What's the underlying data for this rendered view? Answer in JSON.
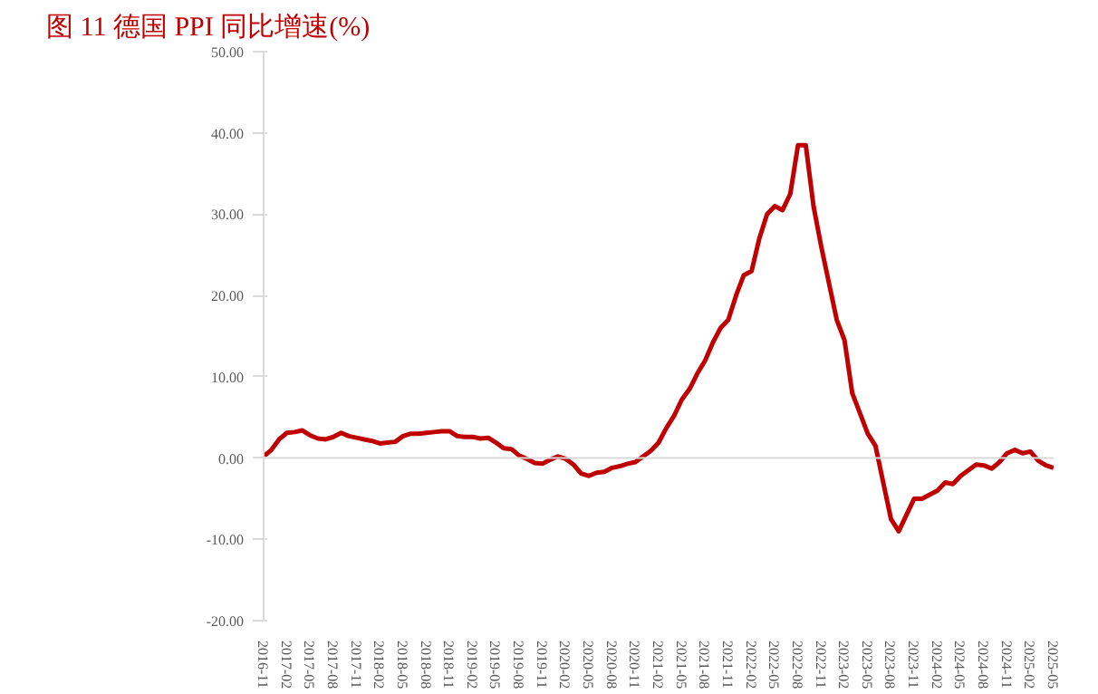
{
  "chart_data": {
    "type": "line",
    "title": "图 11  德国 PPI 同比增速(%)",
    "x": [
      "2016-11",
      "2016-12",
      "2017-01",
      "2017-02",
      "2017-03",
      "2017-04",
      "2017-05",
      "2017-06",
      "2017-07",
      "2017-08",
      "2017-09",
      "2017-10",
      "2017-11",
      "2017-12",
      "2018-01",
      "2018-02",
      "2018-03",
      "2018-04",
      "2018-05",
      "2018-06",
      "2018-07",
      "2018-08",
      "2018-09",
      "2018-10",
      "2018-11",
      "2018-12",
      "2019-01",
      "2019-02",
      "2019-03",
      "2019-04",
      "2019-05",
      "2019-06",
      "2019-07",
      "2019-08",
      "2019-09",
      "2019-10",
      "2019-11",
      "2019-12",
      "2020-01",
      "2020-02",
      "2020-03",
      "2020-04",
      "2020-05",
      "2020-06",
      "2020-07",
      "2020-08",
      "2020-09",
      "2020-10",
      "2020-11",
      "2020-12",
      "2021-01",
      "2021-02",
      "2021-03",
      "2021-04",
      "2021-05",
      "2021-06",
      "2021-07",
      "2021-08",
      "2021-09",
      "2021-10",
      "2021-11",
      "2021-12",
      "2022-01",
      "2022-02",
      "2022-03",
      "2022-04",
      "2022-05",
      "2022-06",
      "2022-07",
      "2022-08",
      "2022-09",
      "2022-10",
      "2022-11",
      "2022-12",
      "2023-01",
      "2023-02",
      "2023-03",
      "2023-04",
      "2023-05",
      "2023-06",
      "2023-07",
      "2023-08",
      "2023-09",
      "2023-10",
      "2023-11",
      "2023-12",
      "2024-01",
      "2024-02",
      "2024-03",
      "2024-04",
      "2024-05",
      "2024-06",
      "2024-07",
      "2024-08",
      "2024-09",
      "2024-10",
      "2024-11",
      "2024-12",
      "2025-01",
      "2025-02",
      "2025-03",
      "2025-04",
      "2025-05"
    ],
    "series": [
      {
        "color": "#c00000",
        "values": [
          0.2,
          1.0,
          2.3,
          3.1,
          3.2,
          3.4,
          2.8,
          2.4,
          2.3,
          2.6,
          3.1,
          2.7,
          2.5,
          2.3,
          2.1,
          1.8,
          1.9,
          2.0,
          2.7,
          3.0,
          3.0,
          3.1,
          3.2,
          3.3,
          3.3,
          2.7,
          2.6,
          2.6,
          2.4,
          2.5,
          1.9,
          1.2,
          1.1,
          0.3,
          -0.1,
          -0.6,
          -0.7,
          -0.2,
          0.2,
          -0.1,
          -0.8,
          -1.9,
          -2.2,
          -1.8,
          -1.7,
          -1.2,
          -1.0,
          -0.7,
          -0.5,
          0.2,
          0.9,
          1.9,
          3.7,
          5.2,
          7.2,
          8.5,
          10.4,
          12.0,
          14.2,
          16.0,
          17.0,
          20.0,
          22.5,
          23.0,
          27.0,
          30.0,
          31.0,
          30.5,
          32.5,
          38.5,
          38.5,
          31.0,
          26.0,
          21.5,
          17.0,
          14.5,
          8.0,
          5.5,
          3.0,
          1.5,
          -3.0,
          -7.5,
          -9.0,
          -7.0,
          -5.0,
          -5.0,
          -4.5,
          -4.0,
          -3.0,
          -3.2,
          -2.2,
          -1.5,
          -0.8,
          -0.9,
          -1.3,
          -0.5,
          0.6,
          1.0,
          0.6,
          0.8,
          -0.3,
          -0.9,
          -1.2
        ]
      }
    ],
    "xlim": [
      "2016-11",
      "2025-05"
    ],
    "xticks": [
      "2016-11",
      "2017-02",
      "2017-05",
      "2017-08",
      "2017-11",
      "2018-02",
      "2018-05",
      "2018-08",
      "2018-11",
      "2019-02",
      "2019-05",
      "2019-08",
      "2019-11",
      "2020-02",
      "2020-05",
      "2020-08",
      "2020-11",
      "2021-02",
      "2021-05",
      "2021-08",
      "2021-11",
      "2022-02",
      "2022-05",
      "2022-08",
      "2022-11",
      "2023-02",
      "2023-05",
      "2023-08",
      "2023-11",
      "2024-02",
      "2024-05",
      "2024-08",
      "2024-11",
      "2025-02",
      "2025-05"
    ],
    "ylim": [
      -20,
      50
    ],
    "yticks": [
      {
        "value": -20,
        "label": "-20.00"
      },
      {
        "value": -10,
        "label": "-10.00"
      },
      {
        "value": 0,
        "label": "0.00"
      },
      {
        "value": 10,
        "label": "10.00"
      },
      {
        "value": 20,
        "label": "20.00"
      },
      {
        "value": 30,
        "label": "30.00"
      },
      {
        "value": 40,
        "label": "40.00"
      },
      {
        "value": 50,
        "label": "50.00"
      }
    ],
    "ref_lines": [
      {
        "axis": "y",
        "value": 0,
        "color": "#d9d9d9"
      }
    ],
    "line_style": "solid"
  }
}
